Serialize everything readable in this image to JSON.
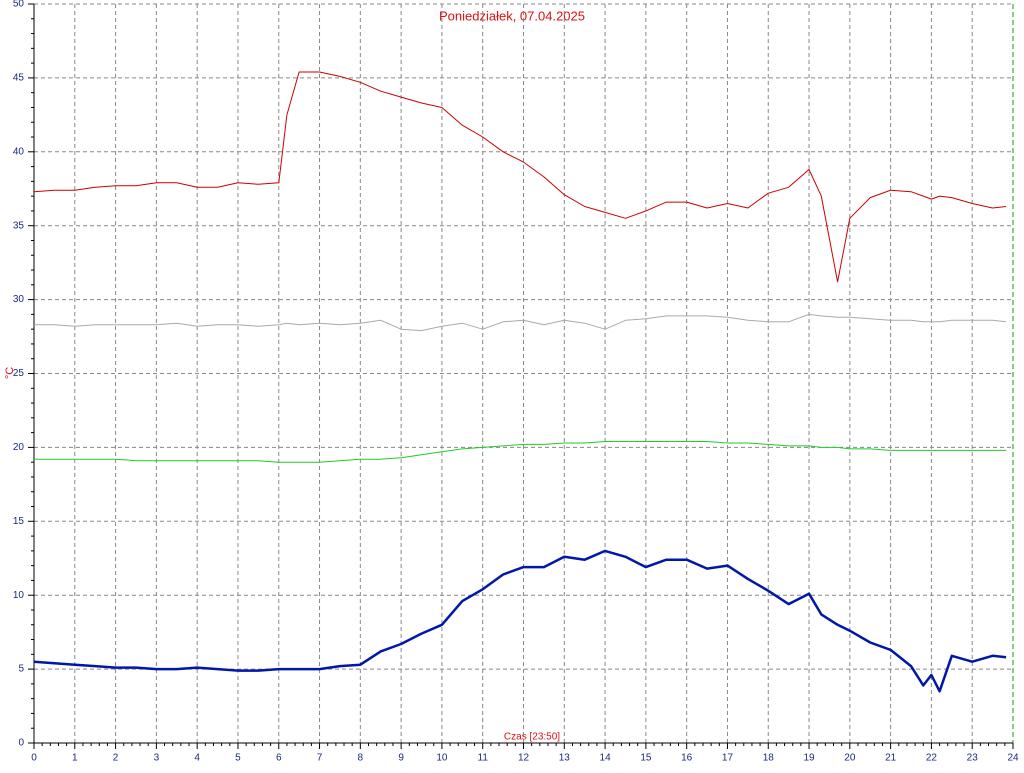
{
  "chart_data": {
    "type": "line",
    "title": "Poniedziałek, 07.04.2025",
    "ylabel": "°C",
    "xlabel": "Czas [23:50]",
    "x": [
      0,
      0.5,
      1,
      1.5,
      2,
      2.5,
      3,
      3.5,
      4,
      4.5,
      5,
      5.5,
      6,
      6.2,
      6.5,
      7,
      7.5,
      8,
      8.5,
      9,
      9.5,
      10,
      10.5,
      11,
      11.5,
      12,
      12.5,
      13,
      13.5,
      14,
      14.5,
      15,
      15.5,
      16,
      16.5,
      17,
      17.5,
      18,
      18.5,
      19,
      19.3,
      19.7,
      20,
      20.5,
      21,
      21.5,
      21.8,
      22,
      22.2,
      22.5,
      23,
      23.5,
      23.83
    ],
    "series": [
      {
        "color": "#cc0000",
        "width": 1,
        "values": [
          37.3,
          37.4,
          37.4,
          37.6,
          37.7,
          37.7,
          37.9,
          37.9,
          37.6,
          37.6,
          37.9,
          37.8,
          37.9,
          42.5,
          45.4,
          45.4,
          45.1,
          44.7,
          44.1,
          43.7,
          43.3,
          43.0,
          41.8,
          41.0,
          40.0,
          39.3,
          38.3,
          37.1,
          36.3,
          35.9,
          35.5,
          36.0,
          36.6,
          36.6,
          36.2,
          36.5,
          36.2,
          37.2,
          37.6,
          38.8,
          37.0,
          31.2,
          35.5,
          36.9,
          37.4,
          37.3,
          37.0,
          36.8,
          37.0,
          36.9,
          36.5,
          36.2,
          36.3
        ]
      },
      {
        "color": "#aaaaaa",
        "width": 1,
        "values": [
          28.3,
          28.3,
          28.2,
          28.3,
          28.3,
          28.3,
          28.3,
          28.4,
          28.2,
          28.3,
          28.3,
          28.2,
          28.3,
          28.4,
          28.3,
          28.4,
          28.3,
          28.4,
          28.6,
          28.0,
          27.9,
          28.2,
          28.4,
          28.0,
          28.5,
          28.6,
          28.3,
          28.6,
          28.4,
          28.0,
          28.6,
          28.7,
          28.9,
          28.9,
          28.9,
          28.8,
          28.6,
          28.5,
          28.5,
          29.0,
          28.9,
          28.8,
          28.8,
          28.7,
          28.6,
          28.6,
          28.5,
          28.5,
          28.5,
          28.6,
          28.6,
          28.6,
          28.5
        ]
      },
      {
        "color": "#22cc22",
        "width": 1,
        "values": [
          19.2,
          19.2,
          19.2,
          19.2,
          19.2,
          19.1,
          19.1,
          19.1,
          19.1,
          19.1,
          19.1,
          19.1,
          19.0,
          19.0,
          19.0,
          19.0,
          19.1,
          19.2,
          19.2,
          19.3,
          19.5,
          19.7,
          19.9,
          20.0,
          20.1,
          20.2,
          20.2,
          20.3,
          20.3,
          20.4,
          20.4,
          20.4,
          20.4,
          20.4,
          20.4,
          20.3,
          20.3,
          20.2,
          20.1,
          20.1,
          20.0,
          20.0,
          19.9,
          19.9,
          19.8,
          19.8,
          19.8,
          19.8,
          19.8,
          19.8,
          19.8,
          19.8,
          19.8
        ]
      },
      {
        "color": "#0018a8",
        "width": 2.5,
        "values": [
          5.5,
          5.4,
          5.3,
          5.2,
          5.1,
          5.1,
          5.0,
          5.0,
          5.1,
          5.0,
          4.9,
          4.9,
          5.0,
          5.0,
          5.0,
          5.0,
          5.2,
          5.3,
          6.2,
          6.7,
          7.4,
          8.0,
          9.6,
          10.4,
          11.4,
          11.9,
          11.9,
          12.6,
          12.4,
          13.0,
          12.6,
          11.9,
          12.4,
          12.4,
          11.8,
          12.0,
          11.1,
          10.3,
          9.4,
          10.1,
          8.7,
          8.0,
          7.6,
          6.8,
          6.3,
          5.2,
          3.9,
          4.6,
          3.5,
          5.9,
          5.5,
          5.9,
          5.8
        ]
      }
    ],
    "xlim": [
      0,
      24
    ],
    "ylim": [
      0,
      50
    ],
    "xticks": [
      0,
      1,
      2,
      3,
      4,
      5,
      6,
      7,
      8,
      9,
      10,
      11,
      12,
      13,
      14,
      15,
      16,
      17,
      18,
      19,
      20,
      21,
      22,
      23,
      24
    ],
    "yticks": [
      0,
      5,
      10,
      15,
      20,
      25,
      30,
      35,
      40,
      45,
      50
    ],
    "grid": true
  }
}
